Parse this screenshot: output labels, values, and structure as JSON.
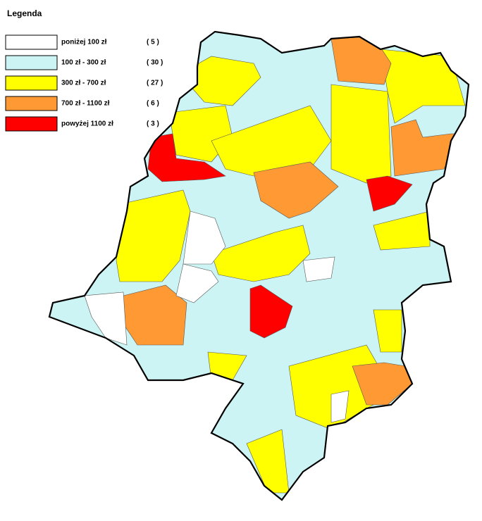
{
  "legend": {
    "title": "Legenda",
    "items": [
      {
        "label": "poniżej 100 zł",
        "count": "( 5 )",
        "color": "#ffffff"
      },
      {
        "label": "100 zł - 300 zł",
        "count": "( 30 )",
        "color": "#ccf4f4"
      },
      {
        "label": "300 zł - 700 zł",
        "count": "( 27 )",
        "color": "#ffff00"
      },
      {
        "label": "700 zł - 1100 zł",
        "count": "( 6 )",
        "color": "#ff9933"
      },
      {
        "label": "powyżej 1100 zł",
        "count": "( 3 )",
        "color": "#ff0000"
      }
    ]
  }
}
